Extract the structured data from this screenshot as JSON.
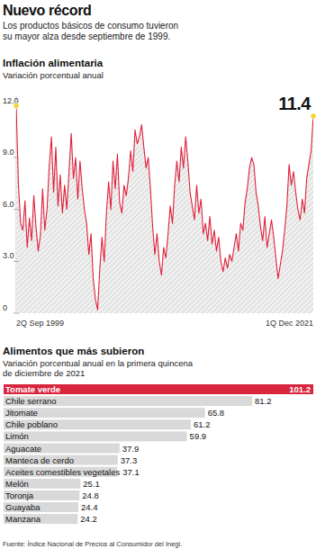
{
  "header": {
    "title": "Nuevo récord",
    "subtitle": [
      "Los productos básicos de consumo tuvieron",
      "su mayor alza desde septiembre de 1999."
    ]
  },
  "chart_data": [
    {
      "type": "area",
      "title": "Inflación alimentaria",
      "subtitle": "Variación porcentual anual",
      "categories": [
        "2Q Sep 1999",
        null,
        null,
        null,
        null,
        null,
        null,
        null,
        null,
        null,
        null,
        null,
        null,
        null,
        null,
        null,
        null,
        null,
        null,
        null,
        null,
        null,
        null,
        null,
        null,
        null,
        null,
        null,
        null,
        null,
        null,
        null,
        null,
        null,
        null,
        null,
        null,
        null,
        null,
        null,
        null,
        null,
        null,
        null,
        null,
        null,
        null,
        null,
        null,
        null,
        null,
        null,
        null,
        null,
        null,
        null,
        null,
        null,
        null,
        null,
        null,
        null,
        null,
        null,
        null,
        null,
        null,
        null,
        null,
        null,
        null,
        null,
        null,
        null,
        null,
        null,
        null,
        null,
        null,
        null,
        null,
        null,
        null,
        null,
        null,
        null,
        null,
        null,
        null,
        null,
        null,
        null,
        null,
        null,
        null,
        null,
        null,
        null,
        null,
        null,
        null,
        null,
        null,
        null,
        null,
        null,
        null,
        null,
        null,
        null,
        null,
        null,
        null,
        null,
        null,
        null,
        null,
        null,
        null,
        null,
        null,
        null,
        null,
        null,
        null,
        null,
        null,
        null,
        null,
        null,
        null,
        null,
        null,
        null,
        null,
        "1Q Dec 2021"
      ],
      "values": [
        12.0,
        7.5,
        5.2,
        4.8,
        6.5,
        3.8,
        5.5,
        4.2,
        6.8,
        5.0,
        3.6,
        4.5,
        7.2,
        4.8,
        6.0,
        8.5,
        10.2,
        7.0,
        9.6,
        6.2,
        8.0,
        5.8,
        7.4,
        6.0,
        8.2,
        10.4,
        7.8,
        9.0,
        6.6,
        8.8,
        7.2,
        6.0,
        5.2,
        3.4,
        4.6,
        2.0,
        0.8,
        0.2,
        2.6,
        4.4,
        3.0,
        5.8,
        7.6,
        6.0,
        8.8,
        7.2,
        9.2,
        6.4,
        5.8,
        7.4,
        6.8,
        7.8,
        9.4,
        8.2,
        10.6,
        9.8,
        10.2,
        10.9,
        9.6,
        8.4,
        9.0,
        7.2,
        5.0,
        3.4,
        4.6,
        3.0,
        2.2,
        3.8,
        3.2,
        4.6,
        6.2,
        5.2,
        7.4,
        8.8,
        7.6,
        9.6,
        8.4,
        10.2,
        8.8,
        7.0,
        6.2,
        5.4,
        7.4,
        5.8,
        6.6,
        4.6,
        5.2,
        4.2,
        5.6,
        4.0,
        4.8,
        3.6,
        4.4,
        3.0,
        2.4,
        3.2,
        2.6,
        3.4,
        3.0,
        3.8,
        4.6,
        3.6,
        5.2,
        4.8,
        6.4,
        7.2,
        8.4,
        9.0,
        8.6,
        7.0,
        6.2,
        5.0,
        4.2,
        5.6,
        3.8,
        4.6,
        5.4,
        4.4,
        3.2,
        2.0,
        2.8,
        3.6,
        4.8,
        6.2,
        8.6,
        7.4,
        8.2,
        7.0,
        6.0,
        5.4,
        6.6,
        5.8,
        7.8,
        8.6,
        9.4,
        11.4
      ],
      "color": "#e0203a",
      "ylim": [
        0,
        12.6
      ],
      "yticks": [
        0,
        {
          "value": 3,
          "label": "3.0"
        },
        {
          "value": 6,
          "label": "6.0"
        },
        {
          "value": 9,
          "label": "9.0"
        },
        {
          "value": 12,
          "label": "12.0"
        }
      ],
      "grid": false,
      "annotations": [
        {
          "point": 0
        },
        {
          "point": 135,
          "text": "11.4"
        }
      ]
    },
    {
      "type": "bar",
      "orientation": "horizontal",
      "title": "Alimentos que más subieron",
      "subtitle": [
        "Variación porcentual anual en la primera quincena",
        "de diciembre de 2021"
      ],
      "categories": [
        "Tomate verde",
        "Chile serrano",
        "Jitomate",
        "Chile poblano",
        "Limón",
        "Aguacate",
        "Manteca de cerdo",
        "Aceites comestibles vegetales",
        "Melón",
        "Toronja",
        "Guayaba",
        "Manzana"
      ],
      "values": [
        101.2,
        81.2,
        65.8,
        61.2,
        59.9,
        37.9,
        37.3,
        37.1,
        25.1,
        24.8,
        24.4,
        24.2
      ],
      "colors": [
        "#d7263d",
        "#d9d9d9",
        "#d9d9d9",
        "#d9d9d9",
        "#d9d9d9",
        "#d9d9d9",
        "#d9d9d9",
        "#d9d9d9",
        "#d9d9d9",
        "#d9d9d9",
        "#d9d9d9",
        "#d9d9d9"
      ],
      "xlim": [
        0,
        101.2
      ],
      "data_labels": true,
      "tick_labels": false
    }
  ],
  "footer": {
    "source": "Fuente: Índice Nacional de Precios al Consumidor del Inegi."
  }
}
